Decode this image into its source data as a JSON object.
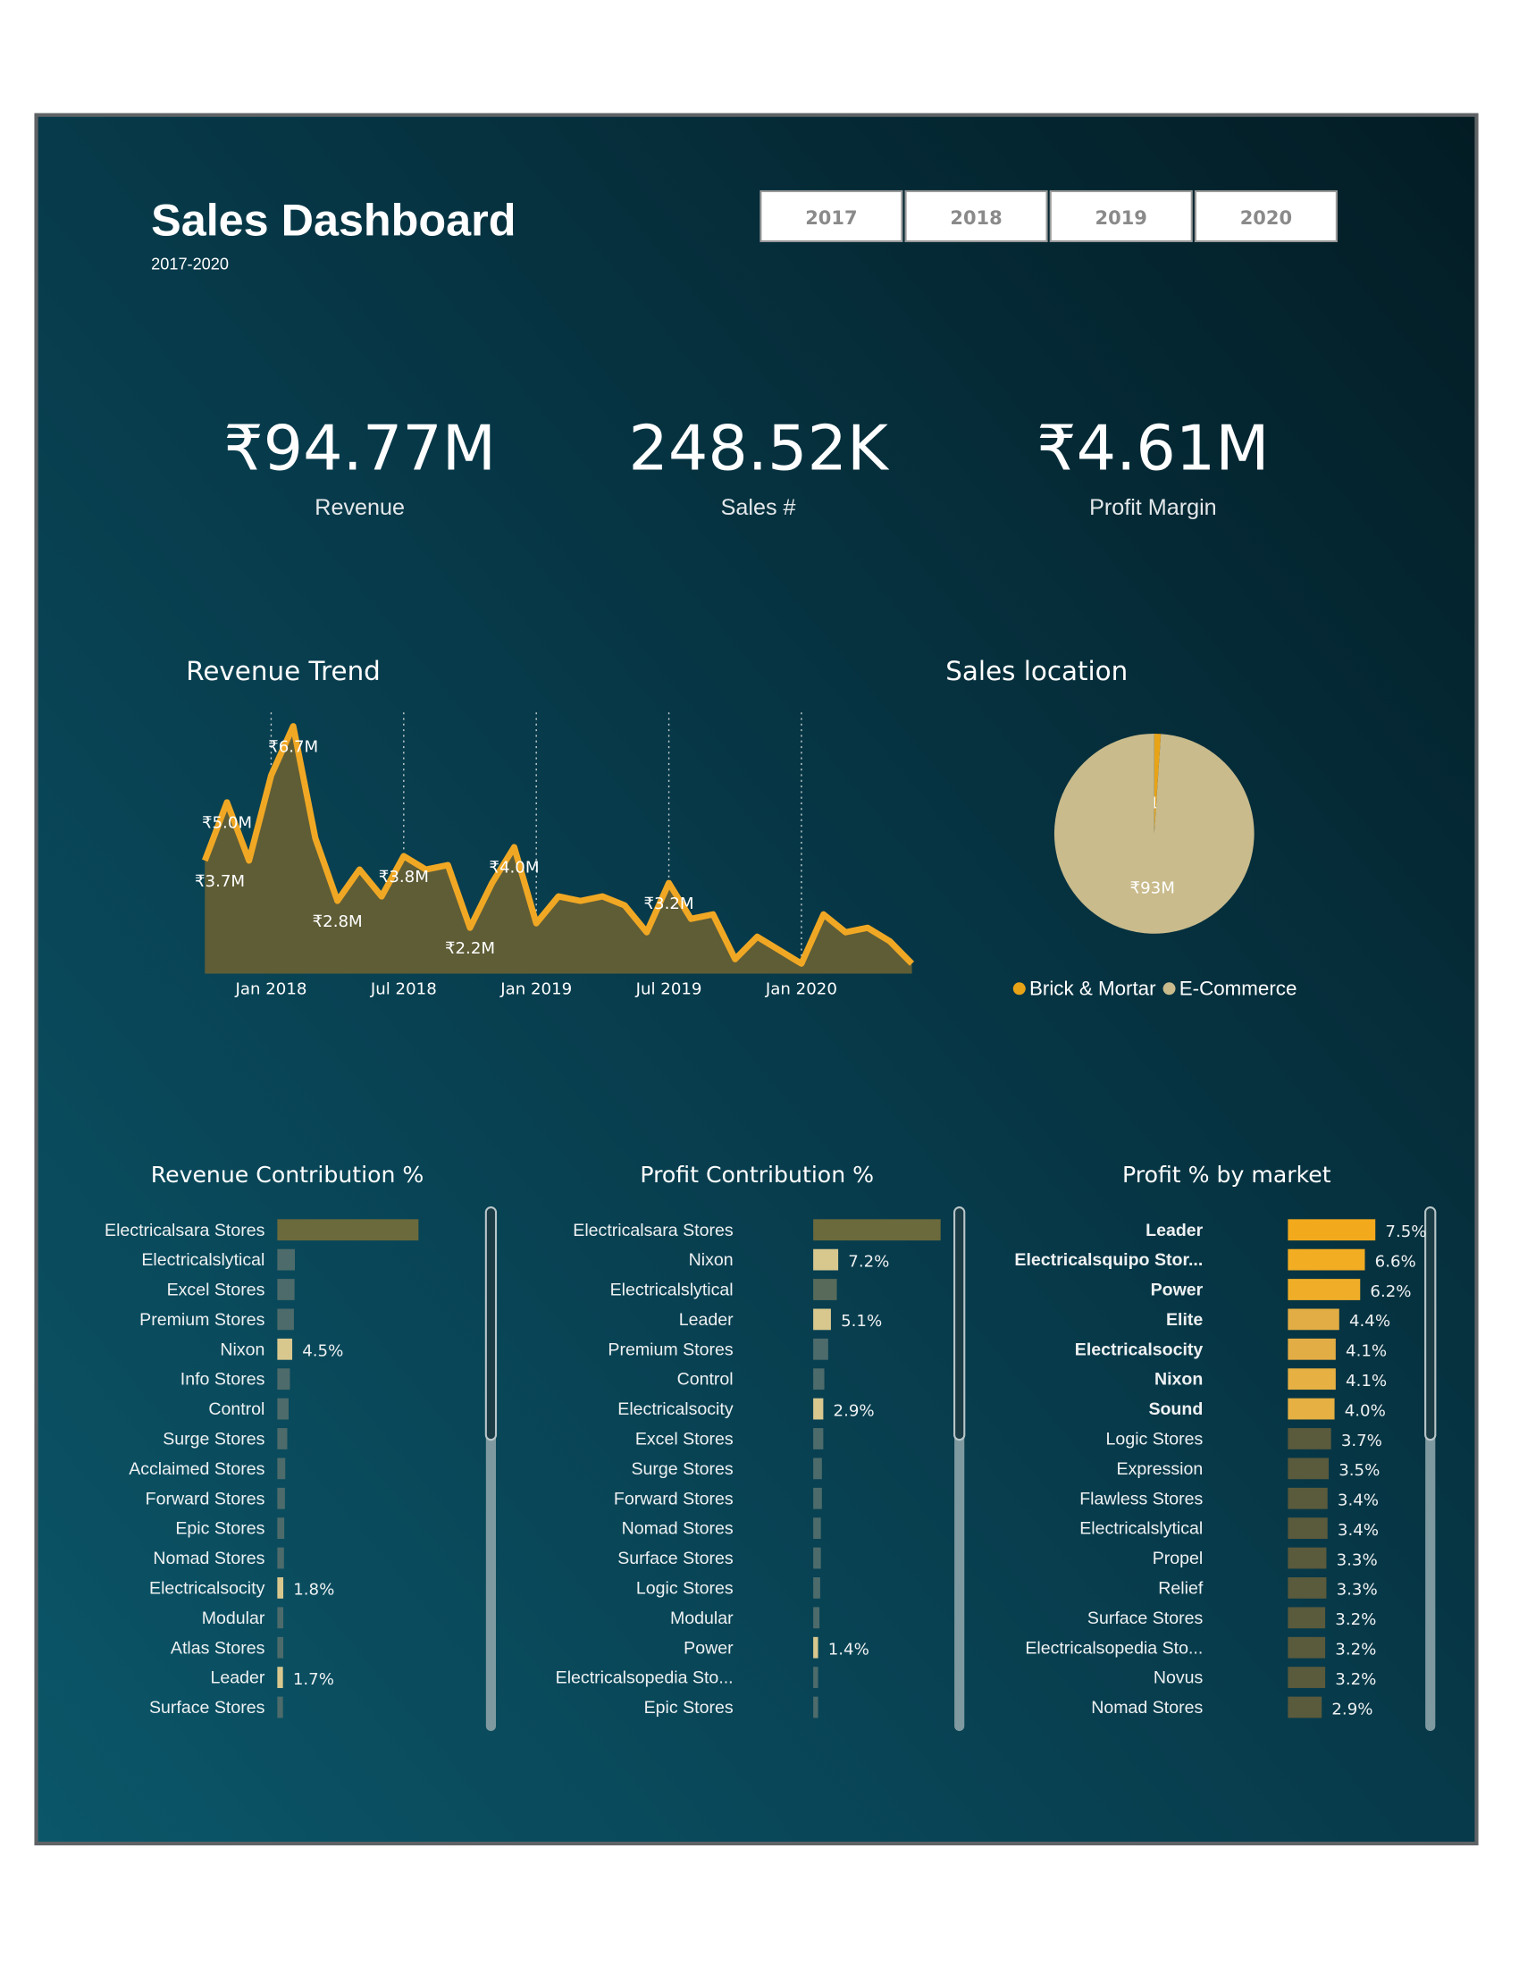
{
  "header": {
    "title": "Sales Dashboard",
    "subtitle": "2017-2020"
  },
  "year_buttons": [
    "2017",
    "2018",
    "2019",
    "2020"
  ],
  "kpis": [
    {
      "value": "₹94.77M",
      "label": "Revenue"
    },
    {
      "value": "248.52K",
      "label": "Sales #"
    },
    {
      "value": "₹4.61M",
      "label": "Profit Margin"
    }
  ],
  "chart_data": [
    {
      "type": "line",
      "title": "Revenue Trend",
      "x": [
        "Oct 2017",
        "Nov 2017",
        "Dec 2017",
        "Jan 2018",
        "Feb 2018",
        "Mar 2018",
        "Apr 2018",
        "May 2018",
        "Jun 2018",
        "Jul 2018",
        "Aug 2018",
        "Sep 2018",
        "Oct 2018",
        "Nov 2018",
        "Dec 2018",
        "Jan 2019",
        "Feb 2019",
        "Mar 2019",
        "Apr 2019",
        "May 2019",
        "Jun 2019",
        "Jul 2019",
        "Aug 2019",
        "Sep 2019",
        "Oct 2019",
        "Nov 2019",
        "Dec 2019",
        "Jan 2020",
        "Feb 2020",
        "Mar 2020",
        "Apr 2020",
        "May 2020",
        "Jun 2020"
      ],
      "values": [
        3.7,
        5.0,
        3.7,
        5.6,
        6.7,
        4.2,
        2.8,
        3.5,
        2.9,
        3.8,
        3.5,
        3.6,
        2.2,
        3.2,
        4.0,
        2.3,
        2.9,
        2.8,
        2.9,
        2.7,
        2.1,
        3.2,
        2.4,
        2.5,
        1.5,
        2.0,
        1.7,
        1.4,
        2.5,
        2.1,
        2.2,
        1.9,
        1.4
      ],
      "value_labels": [
        "₹3.7M",
        "₹5.0M",
        null,
        null,
        "₹6.7M",
        null,
        "₹2.8M",
        null,
        null,
        "₹3.8M",
        null,
        null,
        "₹2.2M",
        null,
        "₹4.0M",
        null,
        null,
        null,
        null,
        null,
        null,
        "₹3.2M",
        null,
        null,
        null,
        null,
        null,
        null,
        null,
        null,
        null,
        null,
        null
      ],
      "xticks": [
        "Jan 2018",
        "Jul 2018",
        "Jan 2019",
        "Jul 2019",
        "Jan 2020"
      ],
      "color": "#f0a824",
      "area_color": "#5f5d36",
      "grid": true
    },
    {
      "type": "pie",
      "title": "Sales location",
      "categories": [
        "Brick & Mortar",
        "E-Commerce"
      ],
      "values": [
        1,
        93
      ],
      "value_labels": [
        "₹1M",
        "₹93M"
      ],
      "colors": [
        "#e8a317",
        "#c9bb8c"
      ],
      "legend": "bottom"
    },
    {
      "type": "bar",
      "title": "Revenue Contribution %",
      "categories": [
        "Electricalsara Stores",
        "Electricalslytical",
        "Excel Stores",
        "Premium Stores",
        "Nixon",
        "Info Stores",
        "Control",
        "Surge Stores",
        "Acclaimed Stores",
        "Forward Stores",
        "Epic Stores",
        "Nomad Stores",
        "Electricalsocity",
        "Modular",
        "Atlas Stores",
        "Leader",
        "Surface Stores"
      ],
      "values": [
        42.6,
        5.3,
        5.2,
        5.0,
        4.5,
        3.8,
        3.4,
        3.0,
        2.4,
        2.3,
        2.1,
        2.0,
        1.8,
        1.8,
        1.8,
        1.7,
        1.7
      ],
      "value_labels": [
        null,
        null,
        null,
        null,
        "4.5%",
        null,
        null,
        null,
        null,
        null,
        null,
        null,
        "1.8%",
        null,
        null,
        "1.7%",
        null
      ],
      "colors": [
        "#6b6a3c",
        "#4d6b6b",
        "#4d6b6b",
        "#4d6b6b",
        "#d8c88e",
        "#4d6b6b",
        "#4d6b6b",
        "#4d6b6b",
        "#4d6b6b",
        "#4d6b6b",
        "#4d6b6b",
        "#4d6b6b",
        "#d8c88e",
        "#4d6b6b",
        "#4d6b6b",
        "#d8c88e",
        "#4d6b6b"
      ]
    },
    {
      "type": "bar",
      "title": "Profit Contribution %",
      "categories": [
        "Electricalsara Stores",
        "Nixon",
        "Electricalslytical",
        "Leader",
        "Premium Stores",
        "Control",
        "Electricalsocity",
        "Excel Stores",
        "Surge Stores",
        "Forward Stores",
        "Nomad Stores",
        "Surface Stores",
        "Logic Stores",
        "Modular",
        "Power",
        "Electricalsopedia Sto...",
        "Epic Stores"
      ],
      "values": [
        36.7,
        7.2,
        6.8,
        5.1,
        4.3,
        3.2,
        2.9,
        2.9,
        2.5,
        2.5,
        2.2,
        2.2,
        2.0,
        1.8,
        1.4,
        1.4,
        1.4
      ],
      "value_labels": [
        null,
        "7.2%",
        null,
        "5.1%",
        null,
        null,
        "2.9%",
        null,
        null,
        null,
        null,
        null,
        null,
        null,
        "1.4%",
        null,
        null
      ],
      "colors": [
        "#6b6a3c",
        "#d8c88e",
        "#586b5a",
        "#d8c88e",
        "#4d6b6b",
        "#4d6b6b",
        "#d8c88e",
        "#4d6b6b",
        "#4d6b6b",
        "#4d6b6b",
        "#4d6b6b",
        "#4d6b6b",
        "#4d6b6b",
        "#4d6b6b",
        "#d8c88e",
        "#4d6b6b",
        "#4d6b6b"
      ]
    },
    {
      "type": "bar",
      "title": "Profit % by market",
      "categories": [
        "Leader",
        "Electricalsquipo Stor...",
        "Power",
        "Elite",
        "Electricalsocity",
        "Nixon",
        "Sound",
        "Logic Stores",
        "Expression",
        "Flawless Stores",
        "Electricalslytical",
        "Propel",
        "Relief",
        "Surface Stores",
        "Electricalsopedia Sto...",
        "Novus",
        "Nomad Stores"
      ],
      "values": [
        7.5,
        6.6,
        6.2,
        4.4,
        4.1,
        4.1,
        4.0,
        3.7,
        3.5,
        3.4,
        3.4,
        3.3,
        3.3,
        3.2,
        3.2,
        3.2,
        2.9
      ],
      "value_labels": [
        "7.5%",
        "6.6%",
        "6.2%",
        "4.4%",
        "4.1%",
        "4.1%",
        "4.0%",
        "3.7%",
        "3.5%",
        "3.4%",
        "3.4%",
        "3.3%",
        "3.3%",
        "3.2%",
        "3.2%",
        "3.2%",
        "2.9%"
      ],
      "colors": [
        "#f2a91c",
        "#f2ad22",
        "#f0ae28",
        "#e3ad45",
        "#e3ad45",
        "#e6b043",
        "#e6b043",
        "#5a5a3c",
        "#5a5a3c",
        "#5a5a3c",
        "#5a5a3c",
        "#5a5a3c",
        "#5a5a3c",
        "#5a5a3c",
        "#5a5a3c",
        "#5a5a3c",
        "#5a5a3c"
      ],
      "highlight": [
        true,
        true,
        true,
        true,
        true,
        true,
        true,
        false,
        false,
        false,
        false,
        false,
        false,
        false,
        false,
        false,
        false
      ]
    }
  ]
}
